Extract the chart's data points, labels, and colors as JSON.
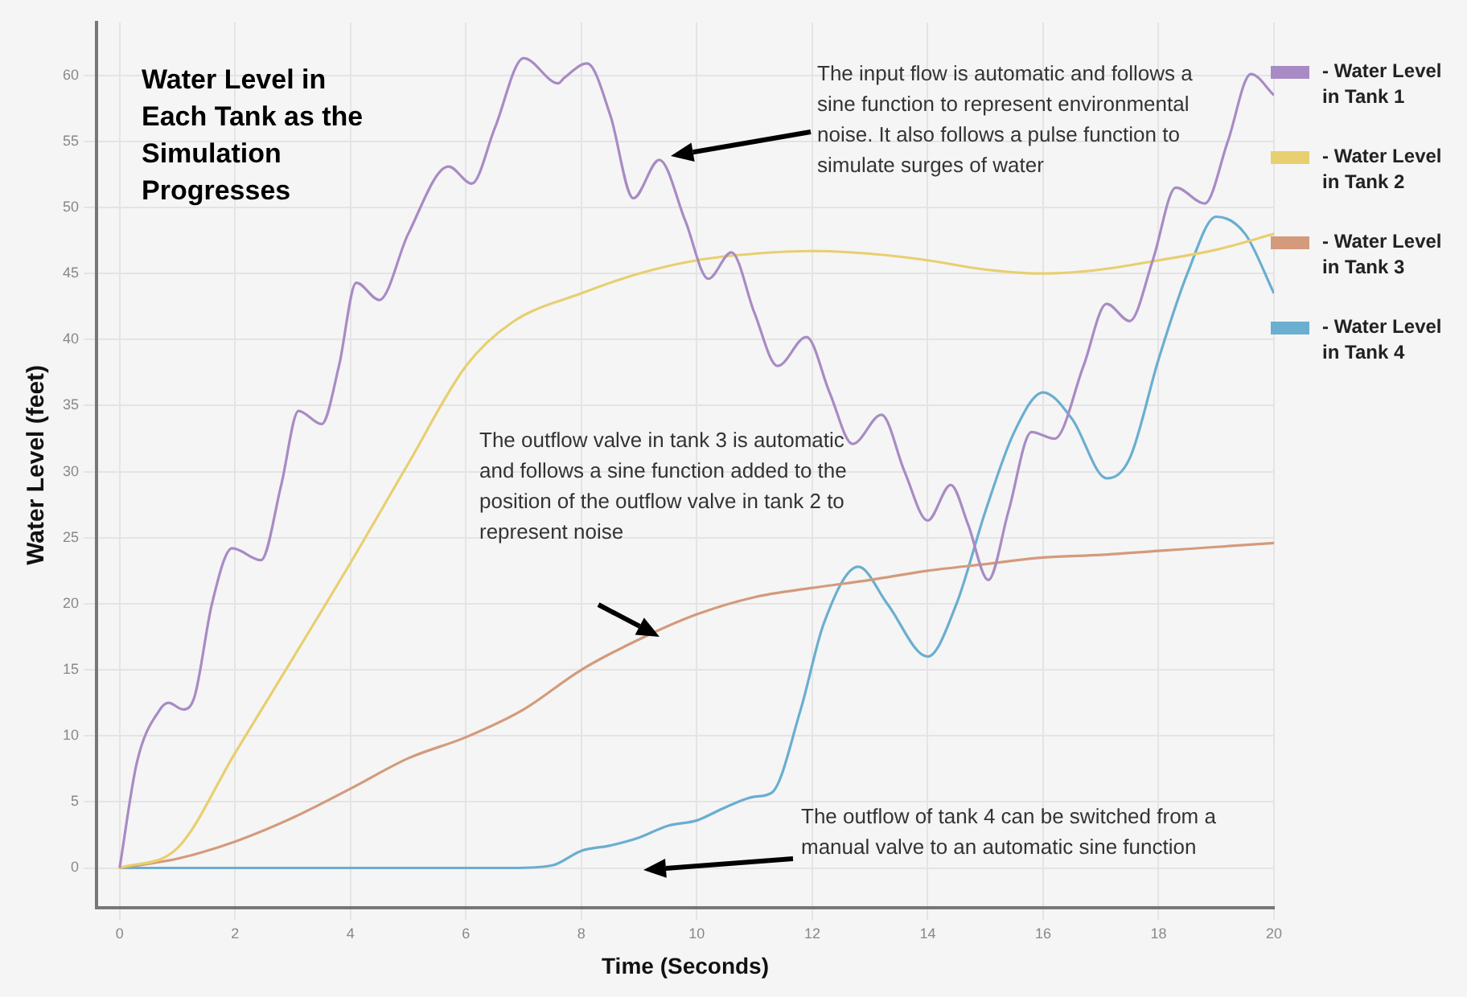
{
  "chart_data": {
    "type": "line",
    "title": "Water Level in Each Tank as the Simulation Progresses",
    "xlabel": "Time (Seconds)",
    "ylabel": "Water Level (feet)",
    "xlim": [
      -0.4,
      20
    ],
    "xticks": [
      0,
      2,
      4,
      6,
      8,
      10,
      12,
      14,
      16,
      18,
      20
    ],
    "ylim": [
      -3,
      64
    ],
    "yticks": [
      0,
      5,
      10,
      15,
      20,
      25,
      30,
      35,
      40,
      45,
      50,
      55,
      60
    ],
    "grid": true,
    "legend": "right",
    "marker": "none",
    "line_style": "solid",
    "annotations": [
      "The input flow is automatic and follows a sine function to represent environmental noise. It also follows a pulse function to simulate surges of water",
      "The outflow valve in tank 3 is automatic and follows a sine function added to the position of the outflow valve in tank 2 to represent noise",
      "The outflow of tank 4 can be switched from a manual valve to an automatic sine function"
    ],
    "series": [
      {
        "name": "- Water Level in Tank 1",
        "color": "#a88bc4",
        "x": [
          0,
          0.3,
          0.7,
          0.85,
          1.1,
          1.3,
          1.6,
          1.95,
          2.45,
          2.8,
          3.1,
          3.5,
          3.8,
          4.1,
          4.5,
          5.0,
          5.7,
          6.1,
          6.5,
          7.0,
          7.6,
          7.7,
          8.1,
          8.5,
          8.9,
          9.35,
          9.8,
          10.2,
          10.6,
          11.0,
          11.4,
          11.9,
          12.3,
          12.7,
          13.2,
          13.6,
          14.0,
          14.4,
          14.7,
          15.05,
          15.4,
          15.8,
          16.2,
          16.7,
          17.1,
          17.5,
          17.9,
          18.3,
          18.8,
          19.2,
          19.6,
          20
        ],
        "values": [
          0,
          8,
          12,
          12.5,
          12,
          13,
          20,
          24.2,
          23.3,
          29,
          34.6,
          33.6,
          38,
          44.3,
          43,
          48,
          53.1,
          51.8,
          56,
          61.3,
          59.4,
          59.8,
          60.9,
          57,
          50.7,
          53.6,
          49,
          44.6,
          46.6,
          42,
          38,
          40.2,
          36,
          32.1,
          34.3,
          30,
          26.3,
          29,
          26,
          21.8,
          27,
          33,
          32.5,
          38,
          42.7,
          41.4,
          46,
          51.5,
          50.3,
          55,
          60.1,
          58.5
        ]
      },
      {
        "name": "- Water Level in Tank 2",
        "color": "#e8cf70",
        "x": [
          0,
          1,
          2,
          4,
          5,
          6,
          6.8,
          8,
          9,
          10,
          11,
          12,
          13,
          14,
          15,
          16,
          17,
          18,
          19,
          20
        ],
        "values": [
          0,
          1.5,
          8.7,
          23.1,
          30.6,
          38,
          41.3,
          43.5,
          45,
          46,
          46.5,
          46.7,
          46.5,
          46,
          45.3,
          45,
          45.3,
          46,
          46.8,
          48
        ]
      },
      {
        "name": "- Water Level in Tank 3",
        "color": "#d49a7c",
        "x": [
          0,
          1,
          2,
          3,
          4,
          5,
          6,
          7,
          8,
          9,
          10,
          11,
          12,
          13,
          14,
          15,
          16,
          17,
          18,
          19,
          20
        ],
        "values": [
          0,
          0.7,
          2,
          3.8,
          6,
          8.3,
          9.9,
          12,
          15,
          17.3,
          19.2,
          20.5,
          21.2,
          21.8,
          22.5,
          23,
          23.5,
          23.7,
          24,
          24.3,
          24.6
        ]
      },
      {
        "name": "- Water Level in Tank 4",
        "color": "#6aaed0",
        "x": [
          0,
          6.8,
          7.5,
          8,
          8.5,
          9,
          9.5,
          10,
          10.5,
          11,
          11.3,
          11.8,
          12.2,
          12.8,
          13.3,
          14,
          14.5,
          15,
          15.5,
          16,
          16.5,
          17.1,
          17.5,
          18,
          18.5,
          19,
          19.5,
          20
        ],
        "values": [
          0,
          0,
          0.2,
          1.3,
          1.7,
          2.3,
          3.2,
          3.6,
          4.6,
          5.4,
          5.7,
          12,
          18.5,
          22.8,
          20,
          16,
          20,
          27,
          33,
          36,
          34,
          29.5,
          31,
          38.5,
          45,
          49.3,
          48,
          43.5
        ]
      }
    ]
  }
}
